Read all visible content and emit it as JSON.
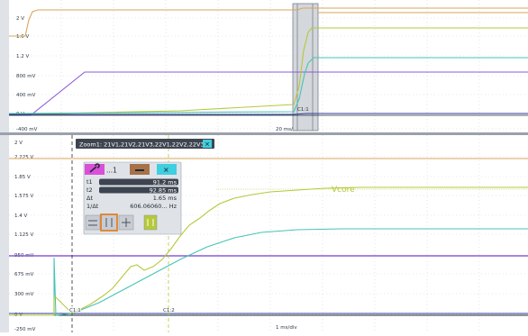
{
  "colors": {
    "orange": "#d9a55a",
    "purple": "#8b5bd9",
    "yellow_green": "#b5c93a",
    "teal": "#46c4b4",
    "blue": "#2e3e9a",
    "dark": "#232a32",
    "zoom_bar_bg": "#3d4550",
    "wrench_btn": "#d94fd9",
    "minimize_btn": "#a7724a",
    "close_btn": "#3fcfe0",
    "cursor_btn_on": "#e0812a"
  },
  "top_pane": {
    "y_labels": [
      "2 V",
      "1.6 V",
      "1.2 V",
      "800 mV",
      "400 mV",
      "0 V",
      "-400 mV"
    ],
    "time_label": "20 ms/",
    "zoom_marker_label": "C1:1"
  },
  "zoom_bar": {
    "title": "Zoom1: 21V1,21V2,21V3,22V1,22V2,22V3",
    "close_glyph": "✕"
  },
  "bottom_pane": {
    "y_labels": [
      "2 V",
      "2.225 V",
      "1.85 V",
      "1.575 V",
      "1.4 V",
      "1.125 V",
      "950 mV",
      "675 mV",
      "300 mV",
      "0 V",
      "-250 mV"
    ],
    "time_label": "1 ms/div",
    "vcore_label": "Vcore",
    "cursor1_label": "C1:1",
    "cursor2_label": "C1:2"
  },
  "cursor_panel": {
    "title_suffix": "...1",
    "rows": [
      {
        "label": "t1",
        "value": "91.2 ms"
      },
      {
        "label": "t2",
        "value": "92.85 ms"
      },
      {
        "label": "Δt",
        "value": "1.65 ms"
      },
      {
        "label": "1/Δt",
        "value": "606.06060... Hz"
      }
    ]
  }
}
